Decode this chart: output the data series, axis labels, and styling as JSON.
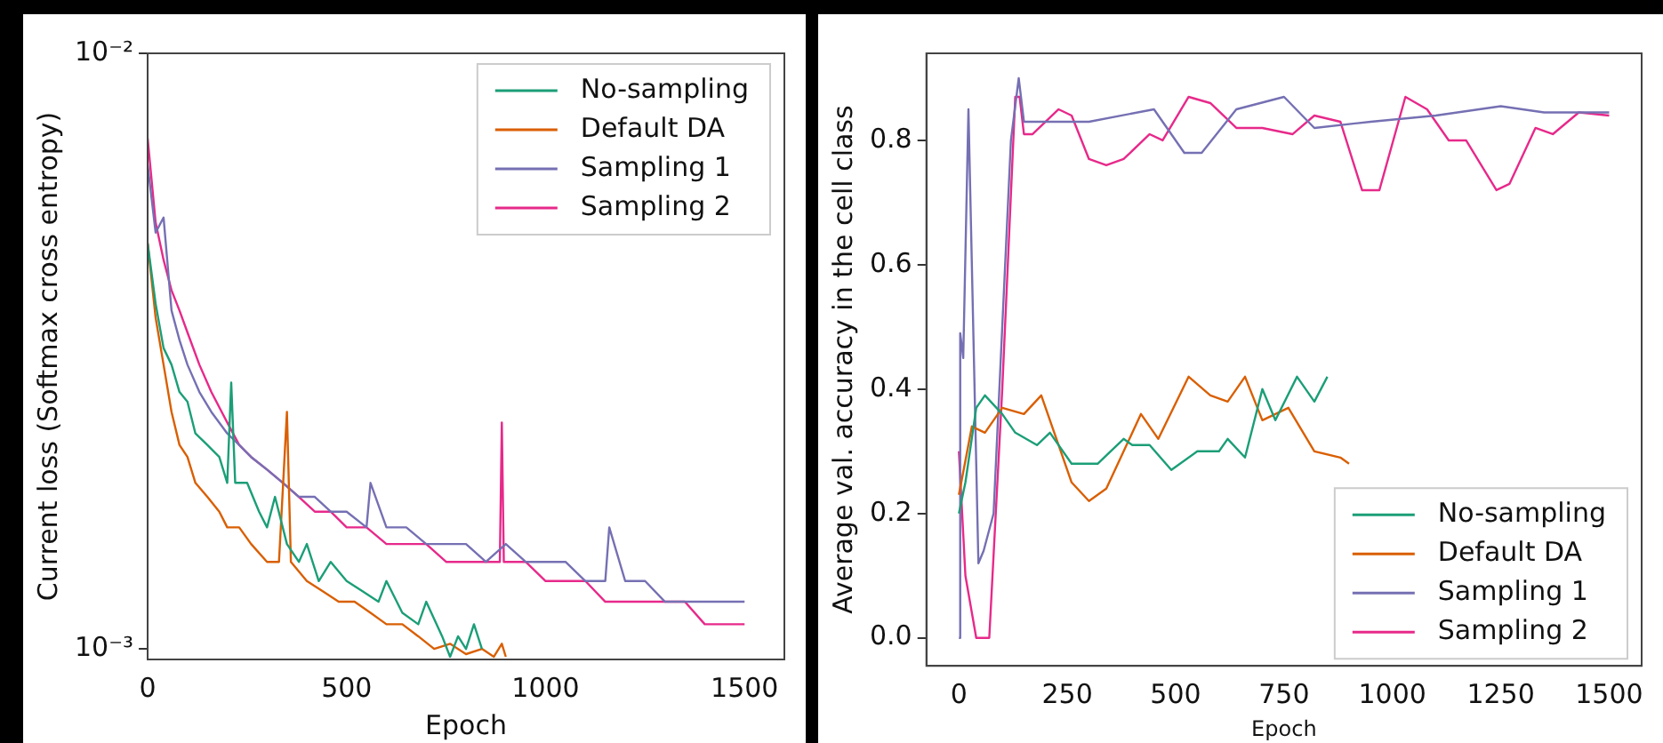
{
  "chart_data": [
    {
      "type": "line",
      "xlabel": "Epoch",
      "ylabel": "Current loss (Softmax cross entropy)",
      "log": true,
      "xlim": [
        0,
        1600
      ],
      "xticks": [
        0,
        500,
        1000,
        1500
      ],
      "ylim": [
        0.00096,
        0.01
      ],
      "yticks": [
        {
          "value": 0.01,
          "label": "10⁻²"
        },
        {
          "value": 0.001,
          "label": "10⁻³"
        }
      ],
      "legend": "top right",
      "series": [
        {
          "name": "No-sampling",
          "color": "#1b9e77",
          "x": [
            0,
            20,
            40,
            60,
            80,
            100,
            120,
            150,
            180,
            200,
            210,
            220,
            250,
            280,
            300,
            320,
            350,
            380,
            400,
            430,
            460,
            500,
            540,
            580,
            600,
            640,
            680,
            700,
            740,
            760,
            780,
            800,
            820,
            840
          ],
          "values": [
            0.0048,
            0.0038,
            0.0032,
            0.003,
            0.0027,
            0.0026,
            0.0023,
            0.0022,
            0.0021,
            0.0019,
            0.0028,
            0.0019,
            0.0019,
            0.0017,
            0.0016,
            0.0018,
            0.0015,
            0.0014,
            0.0015,
            0.0013,
            0.0014,
            0.0013,
            0.00125,
            0.0012,
            0.0013,
            0.00115,
            0.0011,
            0.0012,
            0.00105,
            0.00097,
            0.00105,
            0.001,
            0.0011,
            0.001
          ]
        },
        {
          "name": "Default DA",
          "color": "#d95f02",
          "x": [
            0,
            20,
            40,
            60,
            80,
            100,
            120,
            150,
            180,
            200,
            230,
            260,
            300,
            330,
            350,
            360,
            400,
            440,
            480,
            520,
            560,
            600,
            640,
            680,
            720,
            760,
            800,
            840,
            870,
            890,
            900
          ],
          "values": [
            0.0048,
            0.0036,
            0.003,
            0.0025,
            0.0022,
            0.0021,
            0.0019,
            0.0018,
            0.0017,
            0.0016,
            0.0016,
            0.0015,
            0.0014,
            0.0014,
            0.0025,
            0.0014,
            0.0013,
            0.00125,
            0.0012,
            0.0012,
            0.00115,
            0.0011,
            0.0011,
            0.00105,
            0.001,
            0.00102,
            0.00098,
            0.001,
            0.00097,
            0.00102,
            0.00097
          ]
        },
        {
          "name": "Sampling 1",
          "color": "#7570b3",
          "x": [
            0,
            20,
            40,
            60,
            80,
            100,
            130,
            160,
            200,
            230,
            260,
            300,
            340,
            380,
            420,
            460,
            500,
            550,
            560,
            600,
            650,
            700,
            750,
            800,
            850,
            900,
            950,
            1000,
            1050,
            1100,
            1150,
            1160,
            1200,
            1250,
            1300,
            1350,
            1400,
            1450,
            1500
          ],
          "values": [
            0.0065,
            0.005,
            0.0053,
            0.0037,
            0.0033,
            0.003,
            0.0027,
            0.0025,
            0.0023,
            0.0022,
            0.0021,
            0.002,
            0.0019,
            0.0018,
            0.0018,
            0.0017,
            0.0017,
            0.0016,
            0.0019,
            0.0016,
            0.0016,
            0.0015,
            0.0015,
            0.0015,
            0.0014,
            0.0015,
            0.0014,
            0.0014,
            0.0014,
            0.0013,
            0.0013,
            0.0016,
            0.0013,
            0.0013,
            0.0012,
            0.0012,
            0.0012,
            0.0012,
            0.0012
          ]
        },
        {
          "name": "Sampling 2",
          "color": "#e7298a",
          "x": [
            0,
            20,
            40,
            60,
            80,
            100,
            130,
            160,
            200,
            230,
            260,
            300,
            340,
            380,
            420,
            460,
            500,
            550,
            600,
            650,
            700,
            750,
            800,
            850,
            885,
            890,
            895,
            950,
            1000,
            1050,
            1100,
            1150,
            1200,
            1250,
            1300,
            1350,
            1400,
            1450,
            1500
          ],
          "values": [
            0.0072,
            0.0052,
            0.0045,
            0.004,
            0.0037,
            0.0034,
            0.003,
            0.0027,
            0.0024,
            0.0022,
            0.0021,
            0.002,
            0.0019,
            0.0018,
            0.0017,
            0.0017,
            0.0016,
            0.0016,
            0.0015,
            0.0015,
            0.0015,
            0.0014,
            0.0014,
            0.0014,
            0.0014,
            0.0024,
            0.0014,
            0.0014,
            0.0013,
            0.0013,
            0.0013,
            0.0012,
            0.0012,
            0.0012,
            0.0012,
            0.0012,
            0.0011,
            0.0011,
            0.0011
          ]
        }
      ]
    },
    {
      "type": "line",
      "xlabel": "Epoch",
      "ylabel": "Average val. accuracy in the cell class",
      "xlim": [
        -75,
        1575
      ],
      "xticks": [
        0,
        250,
        500,
        750,
        1000,
        1250,
        1500
      ],
      "ylim": [
        -0.045,
        0.94
      ],
      "yticks": [
        {
          "value": 0,
          "label": "0.0"
        },
        {
          "value": 0.2,
          "label": "0.2"
        },
        {
          "value": 0.4,
          "label": "0.4"
        },
        {
          "value": 0.6,
          "label": "0.6"
        },
        {
          "value": 0.8,
          "label": "0.8"
        }
      ],
      "legend": "bottom right",
      "series": [
        {
          "name": "No-sampling",
          "color": "#1b9e77",
          "x": [
            0,
            15,
            40,
            60,
            100,
            130,
            180,
            210,
            260,
            320,
            380,
            400,
            440,
            490,
            550,
            600,
            620,
            660,
            700,
            730,
            780,
            820,
            850
          ],
          "values": [
            0.2,
            0.25,
            0.37,
            0.39,
            0.36,
            0.33,
            0.31,
            0.33,
            0.28,
            0.28,
            0.32,
            0.31,
            0.31,
            0.27,
            0.3,
            0.3,
            0.32,
            0.29,
            0.4,
            0.35,
            0.42,
            0.38,
            0.42
          ]
        },
        {
          "name": "Default DA",
          "color": "#d95f02",
          "x": [
            0,
            30,
            60,
            100,
            150,
            190,
            220,
            260,
            300,
            340,
            380,
            420,
            460,
            530,
            580,
            620,
            660,
            700,
            760,
            820,
            880,
            900
          ],
          "values": [
            0.23,
            0.34,
            0.33,
            0.37,
            0.36,
            0.39,
            0.33,
            0.25,
            0.22,
            0.24,
            0.3,
            0.36,
            0.32,
            0.42,
            0.39,
            0.38,
            0.42,
            0.35,
            0.37,
            0.3,
            0.29,
            0.28
          ]
        },
        {
          "name": "Sampling 1",
          "color": "#7570b3",
          "x": [
            0,
            3,
            10,
            22,
            45,
            57,
            80,
            120,
            138,
            150,
            300,
            450,
            520,
            560,
            640,
            750,
            820,
            950,
            1100,
            1250,
            1350,
            1500
          ],
          "values": [
            0,
            0.49,
            0.45,
            0.85,
            0.12,
            0.14,
            0.2,
            0.8,
            0.9,
            0.83,
            0.83,
            0.85,
            0.78,
            0.78,
            0.85,
            0.87,
            0.82,
            0.83,
            0.84,
            0.855,
            0.845,
            0.845
          ]
        },
        {
          "name": "Sampling 2",
          "color": "#e7298a",
          "x": [
            0,
            15,
            40,
            70,
            100,
            130,
            140,
            150,
            170,
            230,
            260,
            300,
            340,
            380,
            440,
            470,
            530,
            580,
            640,
            700,
            770,
            820,
            880,
            930,
            970,
            1030,
            1080,
            1130,
            1170,
            1240,
            1270,
            1330,
            1370,
            1430,
            1500
          ],
          "values": [
            0.3,
            0.1,
            0,
            0,
            0.4,
            0.87,
            0.87,
            0.81,
            0.81,
            0.85,
            0.84,
            0.77,
            0.76,
            0.77,
            0.81,
            0.8,
            0.87,
            0.86,
            0.82,
            0.82,
            0.81,
            0.84,
            0.83,
            0.72,
            0.72,
            0.87,
            0.85,
            0.8,
            0.8,
            0.72,
            0.73,
            0.82,
            0.81,
            0.845,
            0.84
          ]
        }
      ]
    }
  ]
}
